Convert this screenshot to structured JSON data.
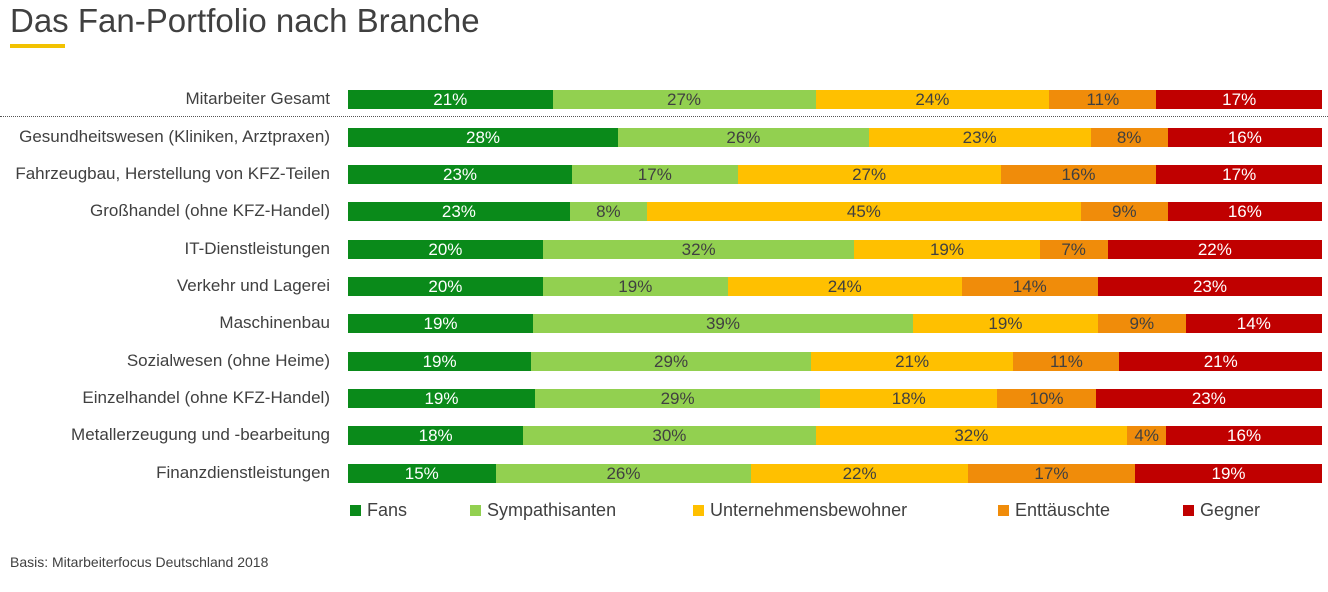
{
  "chart_data": {
    "type": "bar",
    "orientation": "horizontal",
    "stacked": true,
    "title": "Das Fan-Portfolio nach Branche",
    "categories": [
      "Mitarbeiter Gesamt",
      "Gesundheitswesen (Kliniken, Arztpraxen)",
      "Fahrzeugbau, Herstellung von KFZ-Teilen",
      "Großhandel (ohne KFZ-Handel)",
      "IT-Dienstleistungen",
      "Verkehr und Lagerei",
      "Maschinenbau",
      "Sozialwesen (ohne Heime)",
      "Einzelhandel (ohne KFZ-Handel)",
      "Metallerzeugung und -bearbeitung",
      "Finanzdienstleistungen"
    ],
    "series": [
      {
        "name": "Fans",
        "color": "#0a8a1a",
        "text_color": "#ffffff",
        "values": [
          21,
          28,
          23,
          23,
          20,
          20,
          19,
          19,
          19,
          18,
          15
        ]
      },
      {
        "name": "Sympathisanten",
        "color": "#92d050",
        "text_color": "#404040",
        "values": [
          27,
          26,
          17,
          8,
          32,
          19,
          39,
          29,
          29,
          30,
          26
        ]
      },
      {
        "name": "Unternehmensbewohner",
        "color": "#ffc000",
        "text_color": "#404040",
        "values": [
          24,
          23,
          27,
          45,
          19,
          24,
          19,
          21,
          18,
          32,
          22
        ]
      },
      {
        "name": "Enttäuschte",
        "color": "#f08c0a",
        "text_color": "#404040",
        "values": [
          11,
          8,
          16,
          9,
          7,
          14,
          9,
          11,
          10,
          4,
          17
        ]
      },
      {
        "name": "Gegner",
        "color": "#c00000",
        "text_color": "#ffffff",
        "values": [
          17,
          16,
          17,
          16,
          22,
          23,
          14,
          21,
          23,
          16,
          19
        ]
      }
    ],
    "value_suffix": "%",
    "legend_position": "bottom",
    "grid": false
  },
  "source_note": "Basis: Mitarbeiterfocus Deutschland 2018"
}
